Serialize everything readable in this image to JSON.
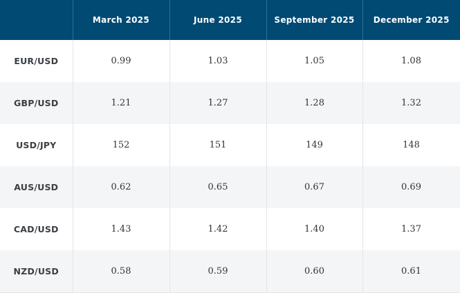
{
  "table": {
    "columns": [
      "",
      "March 2025",
      "June 2025",
      "September 2025",
      "December 2025"
    ],
    "rows": [
      {
        "pair": "EUR/USD",
        "values": [
          "0.99",
          "1.03",
          "1.05",
          "1.08"
        ]
      },
      {
        "pair": "GBP/USD",
        "values": [
          "1.21",
          "1.27",
          "1.28",
          "1.32"
        ]
      },
      {
        "pair": "USD/JPY",
        "values": [
          "152",
          "151",
          "149",
          "148"
        ]
      },
      {
        "pair": "AUS/USD",
        "values": [
          "0.62",
          "0.65",
          "0.67",
          "0.69"
        ]
      },
      {
        "pair": "CAD/USD",
        "values": [
          "1.43",
          "1.42",
          "1.40",
          "1.37"
        ]
      },
      {
        "pair": "NZD/USD",
        "values": [
          "0.58",
          "0.59",
          "0.60",
          "0.61"
        ]
      }
    ]
  },
  "colors": {
    "header_bg": "#004a73",
    "header_text": "#ffffff",
    "row_alt_bg": "#f4f5f6",
    "grid_line": "#e2e4e6"
  }
}
